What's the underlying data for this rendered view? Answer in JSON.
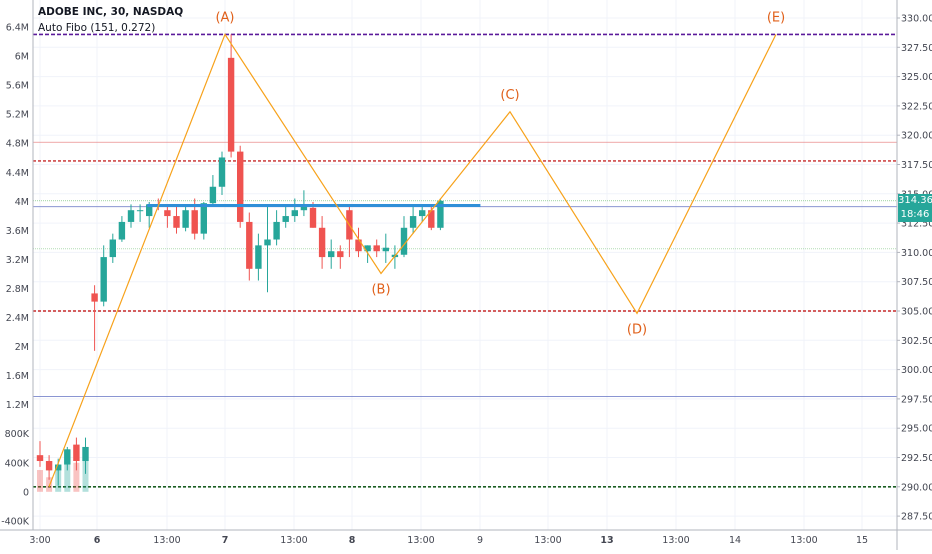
{
  "legend": {
    "symbol_line": "ADOBE INC, 30, NASDAQ",
    "indicator_line": "Auto Fibo (151, 0.272)"
  },
  "badges": {
    "last_price": "314.36",
    "countdown": "18:46"
  },
  "colors": {
    "up": "#26a69a",
    "down": "#ef5350",
    "pattern": "#f7a21b",
    "pattern_label": "#e0601a",
    "trendline": "#2f8fd8",
    "fib_purple": "#5b1a9a",
    "fib_red": "#c62828",
    "fib_green": "#1b5e20",
    "fib_thin_red": "#e57373",
    "fib_thin_blue": "#7986cb",
    "fib_thin_green": "#66bb6a",
    "axis_text": "#434651",
    "grid": "#f0f3fa"
  },
  "chart_data": {
    "type": "candlestick",
    "symbol": "ADOBE INC",
    "interval": "30",
    "exchange": "NASDAQ",
    "price_axis": {
      "range": [
        287.5,
        330.0
      ],
      "ticks": [
        "330.00",
        "327.50",
        "325.00",
        "322.50",
        "320.00",
        "317.50",
        "315.00",
        "312.50",
        "310.00",
        "307.50",
        "305.00",
        "302.50",
        "300.00",
        "297.50",
        "295.00",
        "292.50",
        "290.00",
        "287.50"
      ]
    },
    "volume_axis": {
      "range": [
        -400000,
        6400000
      ],
      "ticks": [
        "6.4M",
        "6M",
        "5.6M",
        "5.2M",
        "4.8M",
        "4.4M",
        "4M",
        "3.6M",
        "3.2M",
        "2.8M",
        "2.4M",
        "2M",
        "1.6M",
        "1.2M",
        "800K",
        "400K",
        "0",
        "-400K"
      ]
    },
    "time_axis": {
      "labels": [
        "3:00",
        "6",
        "13:00",
        "7",
        "13:00",
        "8",
        "13:00",
        "9",
        "13:00",
        "13",
        "13:00",
        "14",
        "13:00",
        "15"
      ],
      "bold": [
        "6",
        "7",
        "8",
        "13"
      ]
    },
    "candles": [
      {
        "o": 292.7,
        "h": 293.9,
        "l": 291.7,
        "c": 292.2
      },
      {
        "o": 292.2,
        "h": 292.7,
        "l": 290.6,
        "c": 291.4
      },
      {
        "o": 291.4,
        "h": 292.4,
        "l": 290.1,
        "c": 291.9
      },
      {
        "o": 291.9,
        "h": 293.4,
        "l": 291.4,
        "c": 293.2
      },
      {
        "o": 293.6,
        "h": 294.2,
        "l": 291.4,
        "c": 292.2
      },
      {
        "o": 292.2,
        "h": 294.2,
        "l": 291.1,
        "c": 293.4
      },
      {
        "o": 306.5,
        "h": 307.2,
        "l": 301.6,
        "c": 305.8
      },
      {
        "o": 305.8,
        "h": 310.6,
        "l": 305.4,
        "c": 309.6
      },
      {
        "o": 309.6,
        "h": 311.6,
        "l": 309.1,
        "c": 311.1
      },
      {
        "o": 311.1,
        "h": 313.1,
        "l": 310.9,
        "c": 312.6
      },
      {
        "o": 312.6,
        "h": 314.1,
        "l": 312.1,
        "c": 313.6
      },
      {
        "o": 313.6,
        "h": 314.1,
        "l": 312.6,
        "c": 313.6
      },
      {
        "o": 313.1,
        "h": 314.3,
        "l": 312.1,
        "c": 314.1
      },
      {
        "o": 314.1,
        "h": 314.6,
        "l": 313.6,
        "c": 313.9
      },
      {
        "o": 313.6,
        "h": 314.1,
        "l": 312.1,
        "c": 313.1
      },
      {
        "o": 313.1,
        "h": 313.9,
        "l": 311.6,
        "c": 312.1
      },
      {
        "o": 312.1,
        "h": 314.1,
        "l": 311.8,
        "c": 313.6
      },
      {
        "o": 313.6,
        "h": 314.6,
        "l": 311.1,
        "c": 311.6
      },
      {
        "o": 311.6,
        "h": 314.3,
        "l": 311.1,
        "c": 314.2
      },
      {
        "o": 314.2,
        "h": 316.6,
        "l": 313.9,
        "c": 315.6
      },
      {
        "o": 315.6,
        "h": 318.6,
        "l": 314.9,
        "c": 318.1
      },
      {
        "o": 326.6,
        "h": 328.6,
        "l": 318.1,
        "c": 318.6
      },
      {
        "o": 318.6,
        "h": 319.1,
        "l": 312.1,
        "c": 312.6
      },
      {
        "o": 312.6,
        "h": 313.4,
        "l": 307.6,
        "c": 308.6
      },
      {
        "o": 308.6,
        "h": 311.6,
        "l": 307.6,
        "c": 310.6
      },
      {
        "o": 310.6,
        "h": 313.9,
        "l": 306.6,
        "c": 311.1
      },
      {
        "o": 311.1,
        "h": 313.6,
        "l": 310.6,
        "c": 312.6
      },
      {
        "o": 312.6,
        "h": 314.1,
        "l": 312.1,
        "c": 313.1
      },
      {
        "o": 313.1,
        "h": 314.6,
        "l": 312.6,
        "c": 313.6
      },
      {
        "o": 313.6,
        "h": 315.3,
        "l": 313.1,
        "c": 314.1
      },
      {
        "o": 313.8,
        "h": 314.3,
        "l": 312.1,
        "c": 312.1
      },
      {
        "o": 312.1,
        "h": 313.1,
        "l": 308.6,
        "c": 309.6
      },
      {
        "o": 309.6,
        "h": 311.1,
        "l": 308.6,
        "c": 310.1
      },
      {
        "o": 310.1,
        "h": 310.6,
        "l": 308.6,
        "c": 309.6
      },
      {
        "o": 313.6,
        "h": 314.1,
        "l": 309.6,
        "c": 311.1
      },
      {
        "o": 311.1,
        "h": 312.1,
        "l": 309.6,
        "c": 310.1
      },
      {
        "o": 310.1,
        "h": 310.6,
        "l": 309.1,
        "c": 310.6
      },
      {
        "o": 310.6,
        "h": 311.1,
        "l": 309.6,
        "c": 310.1
      },
      {
        "o": 310.1,
        "h": 311.6,
        "l": 309.1,
        "c": 310.4
      },
      {
        "o": 309.6,
        "h": 310.6,
        "l": 308.6,
        "c": 309.8
      },
      {
        "o": 309.8,
        "h": 313.1,
        "l": 309.6,
        "c": 312.1
      },
      {
        "o": 312.1,
        "h": 313.9,
        "l": 311.6,
        "c": 313.1
      },
      {
        "o": 313.1,
        "h": 314.1,
        "l": 312.6,
        "c": 313.6
      },
      {
        "o": 313.6,
        "h": 313.9,
        "l": 311.9,
        "c": 312.1
      },
      {
        "o": 312.1,
        "h": 314.6,
        "l": 311.9,
        "c": 314.4
      }
    ],
    "volume_bars": [
      {
        "v": 300000,
        "up": false
      },
      {
        "v": 200000,
        "up": false
      },
      {
        "v": 300000,
        "up": true
      },
      {
        "v": 550000,
        "up": true
      },
      {
        "v": 400000,
        "up": false
      },
      {
        "v": 600000,
        "up": true
      }
    ],
    "trendline": {
      "price": 314.0,
      "from_candle": 12,
      "to_candle": 44
    },
    "pattern_points": [
      {
        "label": "",
        "price": 290.0
      },
      {
        "label": "(A)",
        "price": 328.6
      },
      {
        "label": "(B)",
        "price": 308.2
      },
      {
        "label": "(C)",
        "price": 322.0
      },
      {
        "label": "(D)",
        "price": 304.8
      },
      {
        "label": "(E)",
        "price": 328.6
      }
    ],
    "fib_levels": [
      {
        "price": 328.6,
        "style": "dashed-purple"
      },
      {
        "price": 319.4,
        "style": "thin-red"
      },
      {
        "price": 317.8,
        "style": "dashed-red"
      },
      {
        "price": 314.4,
        "style": "thin-green"
      },
      {
        "price": 313.9,
        "style": "thin-blue"
      },
      {
        "price": 310.3,
        "style": "thin-green"
      },
      {
        "price": 305.0,
        "style": "dashed-red"
      },
      {
        "price": 297.7,
        "style": "thin-blue"
      },
      {
        "price": 290.0,
        "style": "dashed-green"
      }
    ],
    "grid": true
  }
}
